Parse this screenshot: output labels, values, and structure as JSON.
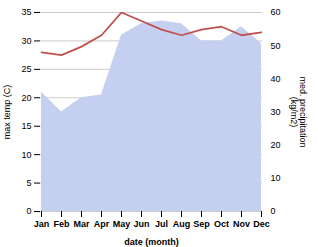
{
  "chart_data": {
    "type": "line",
    "categories": [
      "Jan",
      "Feb",
      "Mar",
      "Apr",
      "May",
      "Jun",
      "Jul",
      "Aug",
      "Sep",
      "Oct",
      "Nov",
      "Dec"
    ],
    "xlabel": "date (month)",
    "ylabel": "max temp (C)",
    "y2label": "med. precipitation\n(kg/m2)",
    "ylim": [
      0,
      35
    ],
    "yticks": [
      0,
      5,
      10,
      15,
      20,
      25,
      30,
      35
    ],
    "y2lim": [
      0,
      60
    ],
    "y2ticks": [
      0,
      10,
      20,
      30,
      40,
      50,
      60
    ],
    "grid": true,
    "series": [
      {
        "type": "area",
        "color": "#c5cff0",
        "values": [
          21,
          17.5,
          20,
          20.5,
          31,
          33,
          33.5,
          33,
          30,
          30,
          32.5,
          29.5
        ]
      },
      {
        "type": "line",
        "color": "#c0504d",
        "values": [
          28,
          27.5,
          29,
          31,
          35,
          33.5,
          32,
          31,
          32,
          32.5,
          31,
          31.5
        ]
      }
    ]
  }
}
